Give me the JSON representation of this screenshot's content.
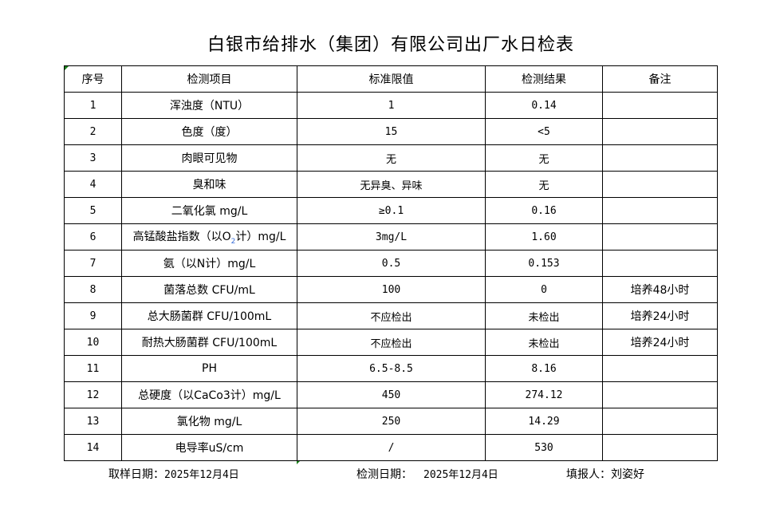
{
  "title": "白银市给排水（集团）有限公司出厂水日检表",
  "headers": [
    "序号",
    "检测项目",
    "标准限值",
    "检测结果",
    "备注"
  ],
  "rows": [
    {
      "no": "1",
      "item": "浑浊度（NTU）",
      "limit": "1",
      "result": "0.14",
      "note": ""
    },
    {
      "no": "2",
      "item": "色度（度）",
      "limit": "15",
      "result": "<5",
      "note": ""
    },
    {
      "no": "3",
      "item": "肉眼可见物",
      "limit": "无",
      "result": "无",
      "note": ""
    },
    {
      "no": "4",
      "item": "臭和味",
      "limit": "无异臭、异味",
      "result": "无",
      "note": ""
    },
    {
      "no": "5",
      "item": "二氧化氯 mg/L",
      "limit": "≥0.1",
      "result": "0.16",
      "note": ""
    },
    {
      "no": "6",
      "item_pre": "高锰酸盐指数（以O",
      "item_sub": "2",
      "item_post": "计）mg/L",
      "limit": "3mg/L",
      "result": "1.60",
      "note": ""
    },
    {
      "no": "7",
      "item": "氨（以N计）mg/L",
      "limit": "0.5",
      "result": "0.153",
      "note": ""
    },
    {
      "no": "8",
      "item": "菌落总数 CFU/mL",
      "limit": "100",
      "result": "0",
      "note": "培养48小时"
    },
    {
      "no": "9",
      "item": "总大肠菌群 CFU/100mL",
      "limit": "不应检出",
      "result": "未检出",
      "note": "培养24小时"
    },
    {
      "no": "10",
      "item": "耐热大肠菌群 CFU/100mL",
      "limit": "不应检出",
      "result": "未检出",
      "note": "培养24小时"
    },
    {
      "no": "11",
      "item": "PH",
      "limit": "6.5-8.5",
      "result": "8.16",
      "note": ""
    },
    {
      "no": "12",
      "item": "总硬度（以CaCo3计）mg/L",
      "limit": "450",
      "result": "274.12",
      "note": ""
    },
    {
      "no": "13",
      "item": "氯化物 mg/L",
      "limit": "250",
      "result": "14.29",
      "note": ""
    },
    {
      "no": "14",
      "item": "电导率uS/cm",
      "limit": "/",
      "result": "530",
      "note": ""
    }
  ],
  "footer": {
    "sampling_label": "取样日期：",
    "sampling_date": "2025年12月4日",
    "testing_label": "检测日期：",
    "testing_date": "2025年12月4日",
    "reporter_label": "填报人：",
    "reporter": "刘姿好"
  },
  "colors": {
    "cell_marker": "#1a7f1a"
  }
}
